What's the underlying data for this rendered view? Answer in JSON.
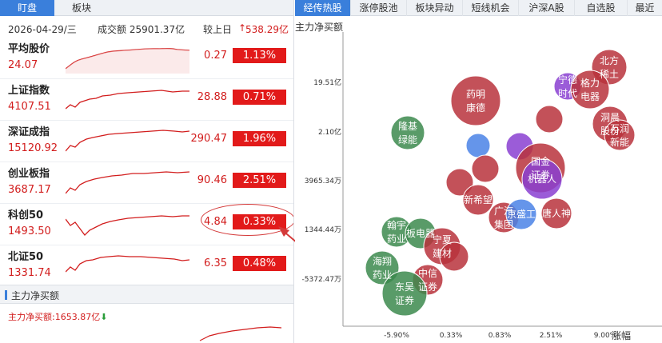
{
  "left_tabs": [
    "盯盘",
    "板块"
  ],
  "summary": {
    "date": "2026-04-29/三",
    "turnover": "成交额 25901.37亿",
    "vs_prev": "较上日",
    "vs_prev_value": "538.29亿"
  },
  "indices": [
    {
      "name": "平均股价",
      "price": "24.07",
      "change": "0.27",
      "pct": "1.13%"
    },
    {
      "name": "上证指数",
      "price": "4107.51",
      "change": "28.88",
      "pct": "0.71%"
    },
    {
      "name": "深证成指",
      "price": "15120.92",
      "change": "290.47",
      "pct": "1.96%"
    },
    {
      "name": "创业板指",
      "price": "3687.17",
      "change": "90.46",
      "pct": "2.51%"
    },
    {
      "name": "科创50",
      "price": "1493.50",
      "change": "4.84",
      "pct": "0.33%"
    },
    {
      "name": "北证50",
      "price": "1331.74",
      "change": "6.35",
      "pct": "0.48%"
    }
  ],
  "flow": {
    "header": "主力净买额",
    "total": "主力净买额:1653.87亿"
  },
  "right_tabs": [
    "经传热股",
    "涨停股池",
    "板块异动",
    "短线机会",
    "沪深A股",
    "自选股",
    "最近"
  ],
  "colors": {
    "up": "#d21d1d",
    "up_bg": "#e21a1a",
    "accent": "#3a7fdb",
    "red_bubble": "#b8323c",
    "green_bubble": "#3c8a4e",
    "purple_bubble": "#8a3fd1",
    "blue_bubble": "#4a82e6"
  },
  "chart_data": {
    "type": "scatter",
    "title": "主力净买额",
    "xlabel": "涨幅",
    "ylabel": "主力净买额",
    "y_ticks": [
      "19.51亿",
      "2.10亿",
      "3965.34万",
      "1344.44万",
      "-5372.47万"
    ],
    "x_ticks": [
      "-5.90%",
      "0.33%",
      "0.83%",
      "2.51%",
      "9.00%"
    ],
    "bubbles": [
      {
        "label": "北方稀土",
        "color": "red"
      },
      {
        "label": "宁德时代",
        "color": "purple"
      },
      {
        "label": "格力电器",
        "color": "red"
      },
      {
        "label": "药明康德",
        "color": "red"
      },
      {
        "label": "",
        "color": "red"
      },
      {
        "label": "洞晨股份",
        "color": "red"
      },
      {
        "label": "万润新能",
        "color": "red"
      },
      {
        "label": "隆基绿能",
        "color": "green"
      },
      {
        "label": "",
        "color": "blue"
      },
      {
        "label": "",
        "color": "purple"
      },
      {
        "label": "国金证券",
        "color": "red"
      },
      {
        "label": "机器人",
        "color": "purple"
      },
      {
        "label": "",
        "color": "red"
      },
      {
        "label": "",
        "color": "red"
      },
      {
        "label": "新希望",
        "color": "red"
      },
      {
        "label": "广汽集团",
        "color": "red"
      },
      {
        "label": "京盛工",
        "color": "blue"
      },
      {
        "label": "唐人神",
        "color": "red"
      },
      {
        "label": "翰宇药业",
        "color": "green"
      },
      {
        "label": "板电器",
        "color": "green"
      },
      {
        "label": "宁夏建材",
        "color": "red"
      },
      {
        "label": "",
        "color": "red"
      },
      {
        "label": "海翔药业",
        "color": "green"
      },
      {
        "label": "中信证券",
        "color": "red"
      },
      {
        "label": "东吴证券",
        "color": "green"
      }
    ]
  }
}
